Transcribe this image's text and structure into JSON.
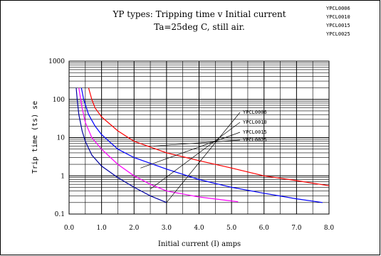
{
  "chart_data": {
    "type": "line",
    "title_line1": "YP types: Tripping time v Initial current",
    "title_line2": "Ta=25deg C, still air.",
    "xlabel": "Initial current (I) amps",
    "ylabel": "Trip time (ts) se",
    "xlim": [
      0,
      8
    ],
    "ylim": [
      0.1,
      1000
    ],
    "y_scale": "log",
    "grid": true,
    "x_ticks": [
      "0.0",
      "1.0",
      "2.0",
      "3.0",
      "4.0",
      "5.0",
      "6.0",
      "7.0",
      "8.0"
    ],
    "y_ticks": [
      "0.1",
      "1",
      "10",
      "100",
      "1000"
    ],
    "legend": [
      "YPCL0006",
      "YPCL0010",
      "YPCL0015",
      "YPCL0025"
    ],
    "annotations": [
      "YPCL0006",
      "YPCL0010",
      "YPCL0015",
      "YPCL0025"
    ],
    "series": [
      {
        "name": "YPCL0006",
        "color": "#0000a0",
        "x": [
          0.22,
          0.25,
          0.3,
          0.4,
          0.5,
          0.7,
          1.0,
          1.5,
          2.0,
          2.5,
          3.0
        ],
        "y": [
          200,
          100,
          40,
          15,
          8,
          3.5,
          1.8,
          0.9,
          0.5,
          0.3,
          0.2
        ]
      },
      {
        "name": "YPCL0010",
        "color": "#ff00ff",
        "x": [
          0.3,
          0.4,
          0.5,
          0.7,
          1.0,
          1.5,
          2.0,
          2.5,
          3.0,
          4.0,
          5.0,
          5.2
        ],
        "y": [
          200,
          60,
          25,
          10,
          5,
          2,
          1,
          0.6,
          0.4,
          0.28,
          0.22,
          0.21
        ]
      },
      {
        "name": "YPCL0015",
        "color": "#0000ff",
        "x": [
          0.38,
          0.45,
          0.6,
          0.8,
          1.0,
          1.5,
          2.0,
          3.0,
          4.0,
          5.0,
          6.0,
          7.0,
          7.8
        ],
        "y": [
          200,
          100,
          40,
          20,
          12,
          5,
          3,
          1.5,
          0.8,
          0.5,
          0.35,
          0.25,
          0.2
        ]
      },
      {
        "name": "YPCL0025",
        "color": "#ff0000",
        "x": [
          0.6,
          0.7,
          0.8,
          1.0,
          1.5,
          2.0,
          3.0,
          4.0,
          5.0,
          6.0,
          7.0,
          8.0
        ],
        "y": [
          200,
          100,
          60,
          35,
          15,
          8,
          4,
          2.5,
          1.6,
          1.0,
          0.75,
          0.55
        ]
      }
    ]
  }
}
